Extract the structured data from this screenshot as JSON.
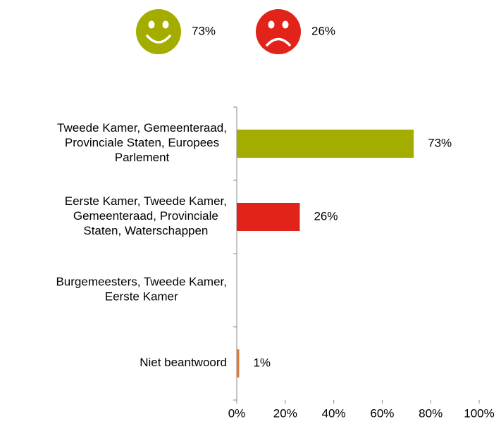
{
  "chart_data": {
    "type": "barh",
    "indicators": [
      {
        "label": "73%",
        "color": "#a3ad00",
        "mood": "happy"
      },
      {
        "label": "26%",
        "color": "#e2231a",
        "mood": "sad"
      }
    ],
    "categories": [
      "Tweede Kamer, Gemeenteraad,\nProvinciale Staten, Europees\nParlement",
      "Eerste Kamer, Tweede Kamer,\nGemeenteraad, Provinciale\nStaten, Waterschappen",
      "Burgemeesters, Tweede Kamer,\nEerste Kamer",
      "Niet beantwoord"
    ],
    "values": [
      73,
      26,
      null,
      1
    ],
    "value_labels": [
      "73%",
      "26%",
      null,
      "1%"
    ],
    "colors": [
      "#a3ad00",
      "#e2231a",
      null,
      "#e07b39"
    ],
    "xlim": [
      0,
      100
    ],
    "xticks": [
      {
        "value": 0,
        "label": "0%"
      },
      {
        "value": 20,
        "label": "20%"
      },
      {
        "value": 40,
        "label": "40%"
      },
      {
        "value": 60,
        "label": "60%"
      },
      {
        "value": 80,
        "label": "80%"
      },
      {
        "value": 100,
        "label": "100%"
      }
    ]
  }
}
